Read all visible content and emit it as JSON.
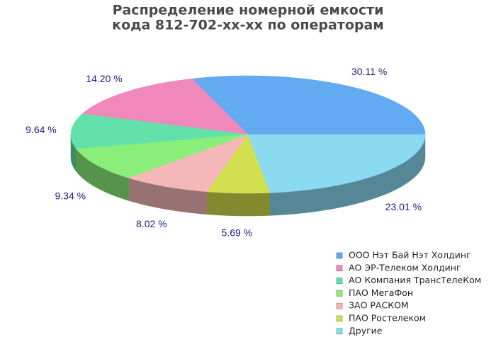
{
  "chart_data": {
    "type": "pie3d",
    "title": [
      "Распределение номерной емкости",
      "кода 812-702-хх-хх по операторам"
    ],
    "categories": [
      "ООО Нэт Бай Нэт Холдинг",
      "АО ЭР-Телеком Холдинг",
      "АО Компания ТрансТелеКом",
      "ПАО МегаФон",
      "ЗАО РАСКОМ",
      "ПАО Ростелеком",
      "Другие"
    ],
    "values": [
      30.11,
      14.2,
      9.64,
      9.34,
      8.02,
      5.69,
      23.01
    ],
    "value_labels": [
      "30.11 %",
      "14.20 %",
      "9.64 %",
      "9.34 %",
      "8.02 %",
      "5.69 %",
      "23.01 %"
    ],
    "colors": [
      "#62aaf2",
      "#f088bc",
      "#62e2aa",
      "#8aee7a",
      "#f5b8b8",
      "#d2df4e",
      "#8adaf2"
    ],
    "legend": "bottom-right"
  }
}
